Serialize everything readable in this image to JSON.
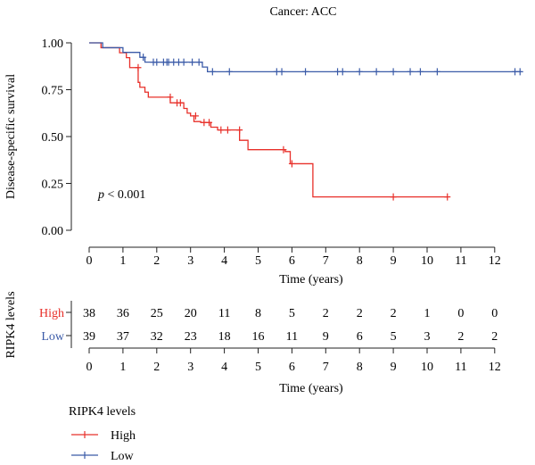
{
  "chart_data": {
    "type": "line",
    "subtype": "kaplan-meier",
    "title": "Cancer: ACC",
    "xlabel": "Time (years)",
    "ylabel": "Disease-specific survival",
    "xlim": [
      0,
      12.8
    ],
    "ylim": [
      0,
      1
    ],
    "x_ticks": [
      "0",
      "1",
      "2",
      "3",
      "4",
      "5",
      "6",
      "7",
      "8",
      "9",
      "10",
      "11",
      "12"
    ],
    "y_ticks": [
      "0.00",
      "0.25",
      "0.50",
      "0.75",
      "1.00"
    ],
    "annotation_italic": "p",
    "annotation_rest": " < 0.001",
    "grid": false,
    "series": [
      {
        "name": "High",
        "color": "#e8302a",
        "steps": [
          [
            0,
            1.0
          ],
          [
            0.35,
            0.974
          ],
          [
            0.9,
            0.947
          ],
          [
            1.1,
            0.921
          ],
          [
            1.2,
            0.868
          ],
          [
            1.45,
            0.789
          ],
          [
            1.5,
            0.763
          ],
          [
            1.65,
            0.737
          ],
          [
            1.75,
            0.71
          ],
          [
            2.4,
            0.68
          ],
          [
            2.8,
            0.65
          ],
          [
            2.9,
            0.625
          ],
          [
            3.0,
            0.61
          ],
          [
            3.1,
            0.58
          ],
          [
            3.3,
            0.575
          ],
          [
            3.6,
            0.55
          ],
          [
            3.8,
            0.535
          ],
          [
            4.45,
            0.48
          ],
          [
            4.7,
            0.43
          ],
          [
            5.8,
            0.42
          ],
          [
            5.95,
            0.355
          ],
          [
            6.6,
            0.355
          ],
          [
            6.62,
            0.178
          ],
          [
            10.62,
            0.178
          ]
        ],
        "censors": [
          [
            1.45,
            0.868
          ],
          [
            2.4,
            0.71
          ],
          [
            2.6,
            0.68
          ],
          [
            2.7,
            0.68
          ],
          [
            3.15,
            0.61
          ],
          [
            3.4,
            0.575
          ],
          [
            3.55,
            0.575
          ],
          [
            3.9,
            0.535
          ],
          [
            4.1,
            0.535
          ],
          [
            4.45,
            0.535
          ],
          [
            5.75,
            0.43
          ],
          [
            6.0,
            0.355
          ],
          [
            9.0,
            0.178
          ],
          [
            10.6,
            0.178
          ]
        ]
      },
      {
        "name": "Low",
        "color": "#3b5ba8",
        "steps": [
          [
            0,
            1.0
          ],
          [
            0.35,
            1.0
          ],
          [
            0.4,
            0.974
          ],
          [
            1.0,
            0.949
          ],
          [
            1.5,
            0.923
          ],
          [
            1.65,
            0.897
          ],
          [
            3.3,
            0.897
          ],
          [
            3.35,
            0.871
          ],
          [
            3.5,
            0.846
          ],
          [
            12.8,
            0.846
          ]
        ],
        "censors": [
          [
            1.6,
            0.923
          ],
          [
            1.9,
            0.897
          ],
          [
            2.0,
            0.897
          ],
          [
            2.2,
            0.897
          ],
          [
            2.3,
            0.897
          ],
          [
            2.35,
            0.897
          ],
          [
            2.5,
            0.897
          ],
          [
            2.65,
            0.897
          ],
          [
            2.8,
            0.897
          ],
          [
            3.05,
            0.897
          ],
          [
            3.25,
            0.897
          ],
          [
            3.65,
            0.846
          ],
          [
            4.15,
            0.846
          ],
          [
            5.55,
            0.846
          ],
          [
            5.7,
            0.846
          ],
          [
            6.4,
            0.846
          ],
          [
            7.35,
            0.846
          ],
          [
            7.5,
            0.846
          ],
          [
            8.0,
            0.846
          ],
          [
            8.5,
            0.846
          ],
          [
            9.0,
            0.846
          ],
          [
            9.5,
            0.846
          ],
          [
            9.8,
            0.846
          ],
          [
            10.3,
            0.846
          ],
          [
            12.6,
            0.846
          ],
          [
            12.75,
            0.846
          ]
        ]
      }
    ]
  },
  "risk_table": {
    "ylabel": "RIPK4 levels",
    "xlabel": "Time (years)",
    "rows": [
      {
        "name": "High",
        "color": "#e8302a",
        "values": [
          "38",
          "36",
          "25",
          "20",
          "11",
          "8",
          "5",
          "2",
          "2",
          "2",
          "1",
          "0",
          "0"
        ]
      },
      {
        "name": "Low",
        "color": "#3b5ba8",
        "values": [
          "39",
          "37",
          "32",
          "23",
          "18",
          "16",
          "11",
          "9",
          "6",
          "5",
          "3",
          "2",
          "2"
        ]
      }
    ]
  },
  "legend": {
    "title": "RIPK4 levels",
    "items": [
      {
        "name": "High",
        "color": "#e8302a"
      },
      {
        "name": "Low",
        "color": "#3b5ba8"
      }
    ]
  }
}
